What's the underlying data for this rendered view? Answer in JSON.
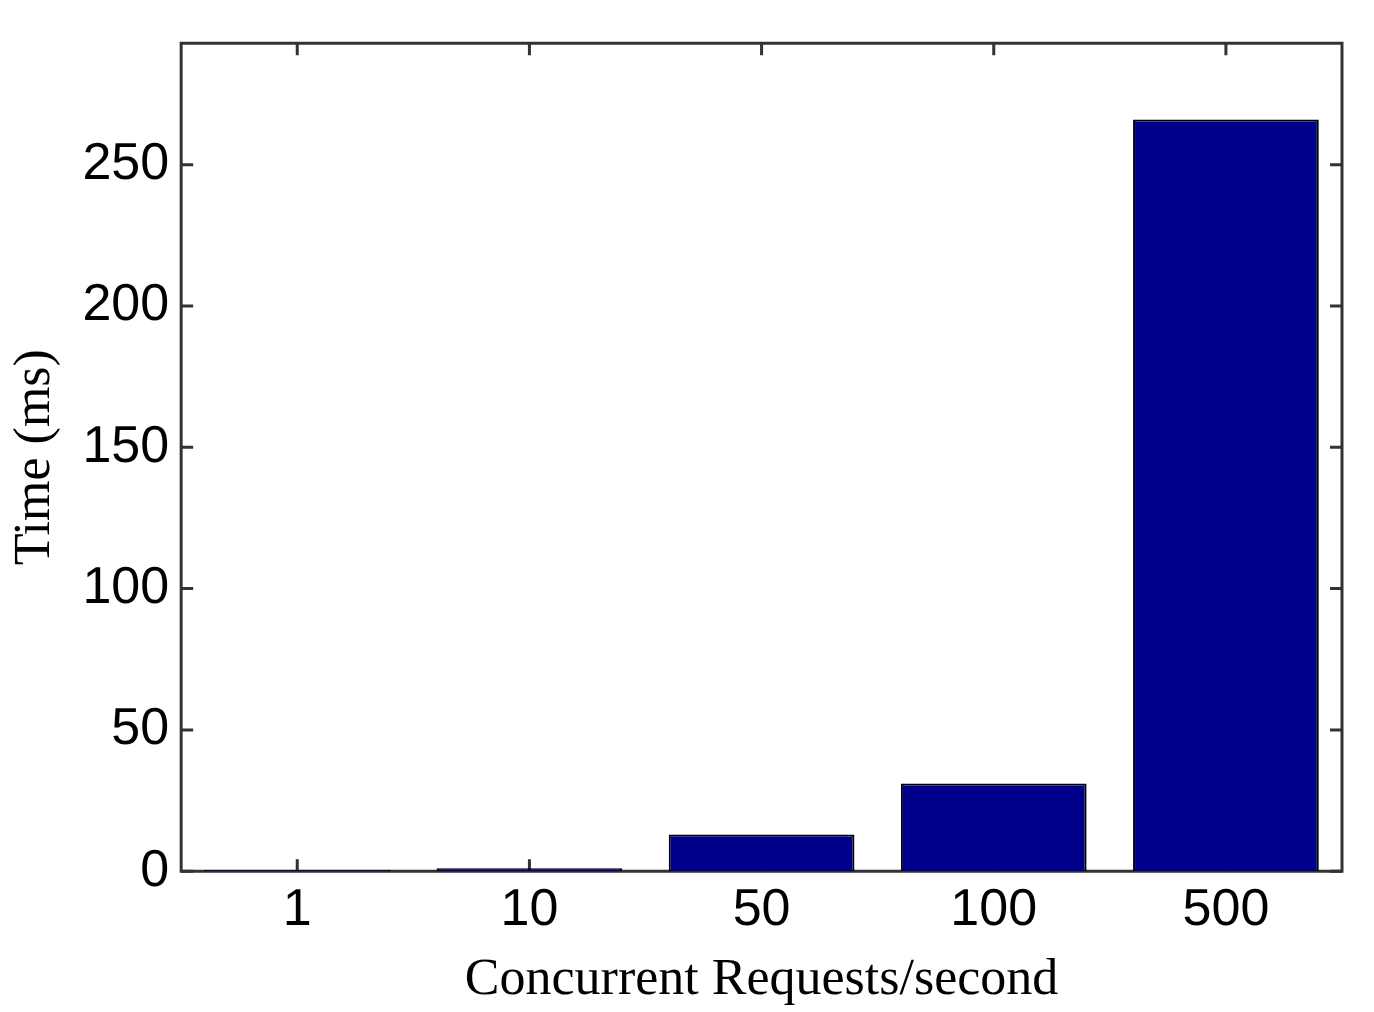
{
  "chart_data": {
    "type": "bar",
    "xlabel": "Concurrent Requests/second",
    "ylabel": "Time (ms)",
    "categories": [
      "1",
      "10",
      "50",
      "100",
      "500"
    ],
    "values": [
      0.5,
      1,
      13,
      31,
      266
    ],
    "color": "#00008b",
    "ylim": [
      0,
      293
    ],
    "yticks": [
      0,
      50,
      100,
      150,
      200,
      250
    ],
    "grid": false,
    "legend": false
  }
}
